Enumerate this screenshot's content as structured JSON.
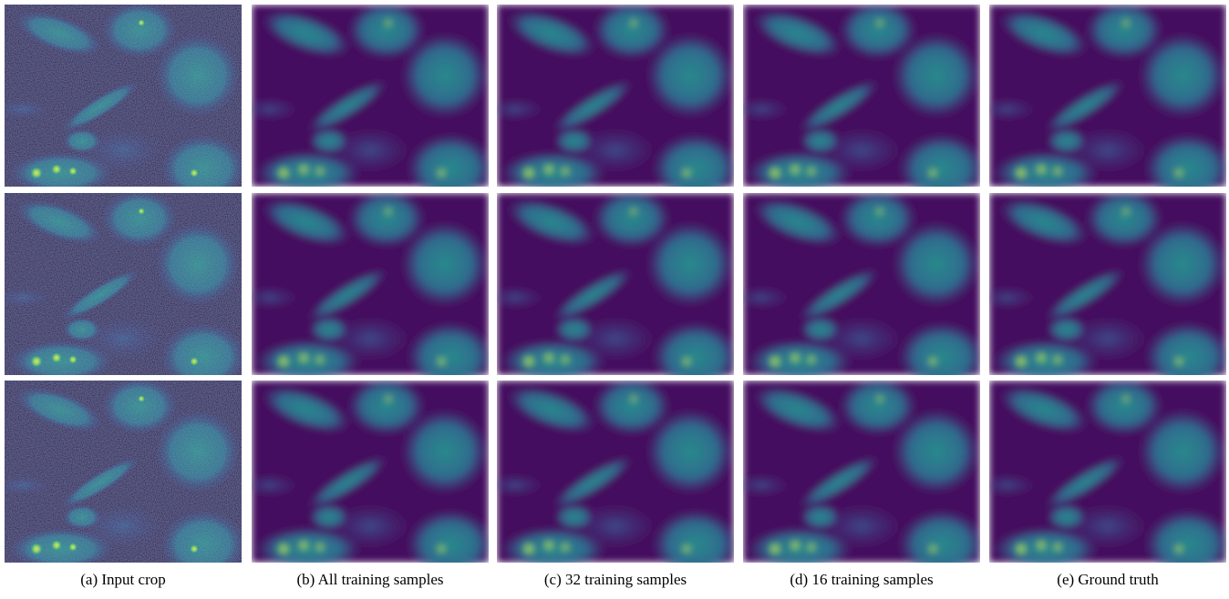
{
  "figure": {
    "captions": [
      "(a) Input crop",
      "(b) All training samples",
      "(c) 32 training samples",
      "(d) 16 training samples",
      "(e) Ground truth"
    ]
  }
}
